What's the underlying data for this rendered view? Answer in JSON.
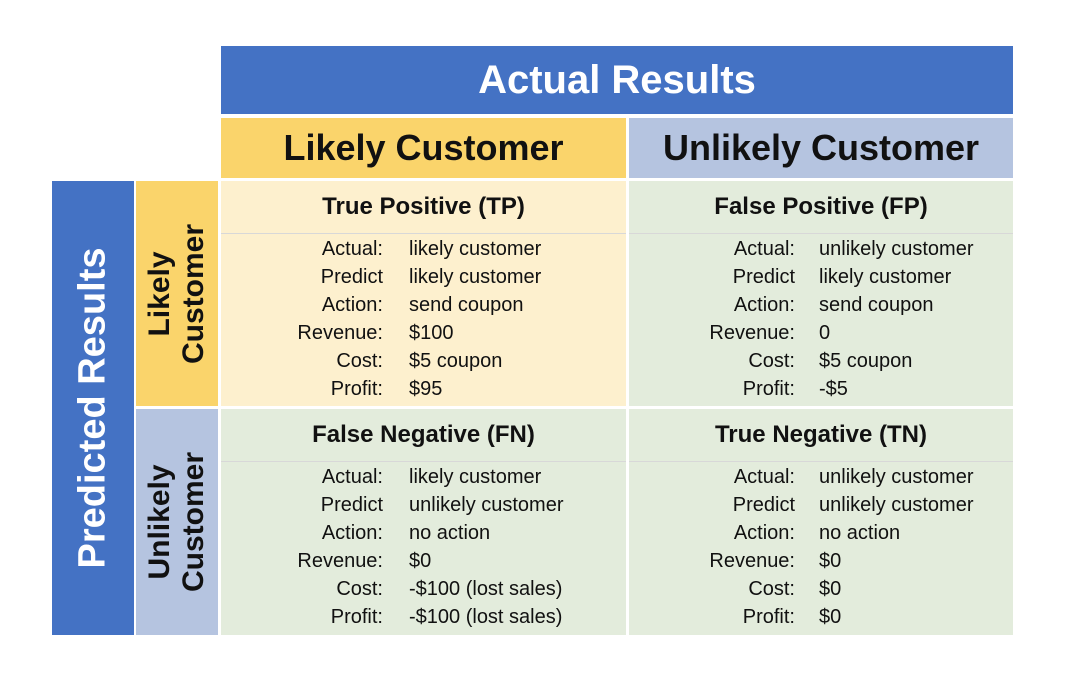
{
  "actual_header": "Actual Results",
  "predicted_header": "Predicted Results",
  "columns": {
    "likely": "Likely Customer",
    "unlikely": "Unlikely Customer"
  },
  "rows": {
    "likely": {
      "line1": "Likely",
      "line2": "Customer"
    },
    "unlikely": {
      "line1": "Unlikely",
      "line2": "Customer"
    }
  },
  "labels": [
    "Actual:",
    "Predict",
    "Action:",
    "Revenue:",
    "Cost:",
    "Profit:"
  ],
  "cells": {
    "tp": {
      "title": "True Positive (TP)",
      "values": [
        "likely customer",
        "likely customer",
        "send coupon",
        "$100",
        "$5 coupon",
        "$95"
      ]
    },
    "fp": {
      "title": "False Positive (FP)",
      "values": [
        "unlikely customer",
        "likely customer",
        "send coupon",
        "0",
        "$5 coupon",
        "-$5"
      ]
    },
    "fn": {
      "title": "False Negative (FN)",
      "values": [
        "likely customer",
        "unlikely customer",
        "no action",
        "$0",
        "-$100 (lost sales)",
        "-$100 (lost sales)"
      ]
    },
    "tn": {
      "title": "True Negative (TN)",
      "values": [
        "unlikely customer",
        "unlikely customer",
        "no action",
        "$0",
        "$0",
        "$0"
      ]
    }
  },
  "colors": {
    "blue": "#4472c4",
    "gold": "#fad46b",
    "light_blue": "#b5c4e0",
    "cream": "#fdf0ce",
    "sage": "#e3ecdc"
  }
}
